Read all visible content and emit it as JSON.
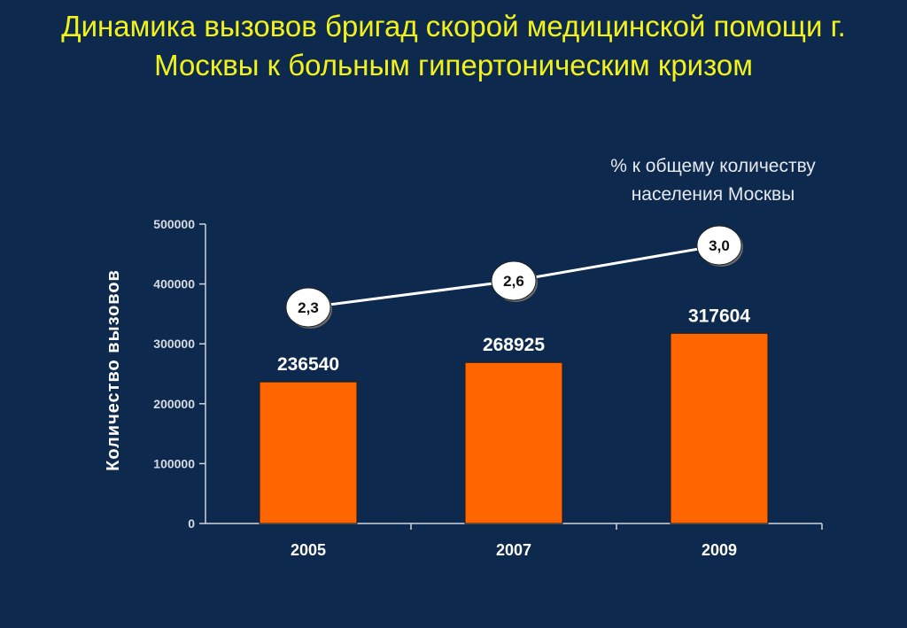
{
  "title": "Динамика вызовов бригад скорой медицинской помощи г. Москвы к больным гипертоническим кризом",
  "colors": {
    "background": "#0d2a4e",
    "title": "#f2f21a",
    "bars": "#ff6600",
    "line": "#ffffff"
  },
  "chart_data": {
    "type": "bar",
    "categories": [
      "2005",
      "2007",
      "2009"
    ],
    "ylabel": "Количество вызовов",
    "ylim": [
      0,
      500000
    ],
    "yticks": [
      "0",
      "100000",
      "200000",
      "300000",
      "400000",
      "500000"
    ],
    "series": [
      {
        "type": "bar",
        "values": [
          236540,
          268925,
          317604
        ],
        "value_labels": [
          "236540",
          "268925",
          "317604"
        ]
      },
      {
        "type": "line",
        "name": "% к общему количеству населения Москвы",
        "values": [
          2.3,
          2.6,
          3.0
        ],
        "value_labels": [
          "2,3",
          "2,6",
          "3,0"
        ]
      }
    ],
    "grid": false
  }
}
